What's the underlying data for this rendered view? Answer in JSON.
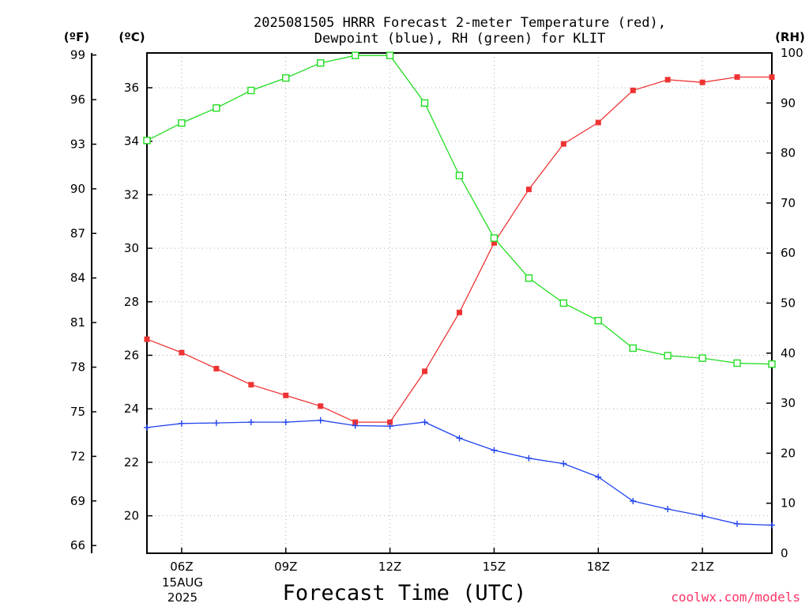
{
  "chart_data": {
    "type": "line",
    "title_line1": "2025081505 HRRR Forecast 2-meter Temperature (red),",
    "title_line2": "Dewpoint (blue), RH (green) for KLIT",
    "xlabel": "Forecast Time (UTC)",
    "credit": "coolwx.com/models",
    "unit_f": "(ºF)",
    "unit_c": "(ºC)",
    "unit_rh": "(RH)",
    "x_hours": [
      5,
      6,
      7,
      8,
      9,
      10,
      11,
      12,
      13,
      14,
      15,
      16,
      17,
      18,
      19,
      20,
      21,
      22,
      23
    ],
    "xlim": [
      5,
      23
    ],
    "x_ticks": [
      {
        "hour": 6,
        "label": "06Z"
      },
      {
        "hour": 9,
        "label": "09Z"
      },
      {
        "hour": 12,
        "label": "12Z"
      },
      {
        "hour": 15,
        "label": "15Z"
      },
      {
        "hour": 18,
        "label": "18Z"
      },
      {
        "hour": 21,
        "label": "21Z"
      }
    ],
    "date_label_line1": "15AUG",
    "date_label_line2": "2025",
    "ylim_c": [
      18.6,
      37.3
    ],
    "y_ticks_c": [
      "20",
      "22",
      "24",
      "26",
      "28",
      "30",
      "32",
      "34",
      "36"
    ],
    "y_ticks_f": [
      "66",
      "69",
      "72",
      "75",
      "78",
      "81",
      "84",
      "87",
      "90",
      "93",
      "96",
      "99"
    ],
    "ylim_rh": [
      0,
      100
    ],
    "y_ticks_rh": [
      "0",
      "10",
      "20",
      "30",
      "40",
      "50",
      "60",
      "70",
      "80",
      "90",
      "100"
    ],
    "grid": true,
    "series": [
      {
        "key": "temperature",
        "axis": "c",
        "color": "#ee3333",
        "marker": "filled-square",
        "values": [
          26.6,
          26.1,
          25.5,
          24.9,
          24.5,
          24.1,
          23.5,
          23.5,
          25.4,
          27.6,
          30.2,
          32.2,
          33.9,
          34.7,
          35.9,
          36.3,
          36.2,
          36.4,
          36.4
        ]
      },
      {
        "key": "dewpoint",
        "axis": "c",
        "color": "#2244ee",
        "marker": "plus",
        "values": [
          23.3,
          23.45,
          23.47,
          23.5,
          23.5,
          23.57,
          23.37,
          23.35,
          23.5,
          22.9,
          22.45,
          22.15,
          21.95,
          21.45,
          20.55,
          20.25,
          20.0,
          19.7,
          19.65
        ]
      },
      {
        "key": "rh",
        "axis": "rh",
        "color": "#22dd22",
        "marker": "open-square",
        "values": [
          82.5,
          86,
          89,
          92.5,
          95,
          98,
          99.5,
          99.5,
          90,
          75.5,
          63,
          55,
          50,
          46.5,
          41,
          39.5,
          39,
          38,
          37.8
        ]
      }
    ]
  }
}
